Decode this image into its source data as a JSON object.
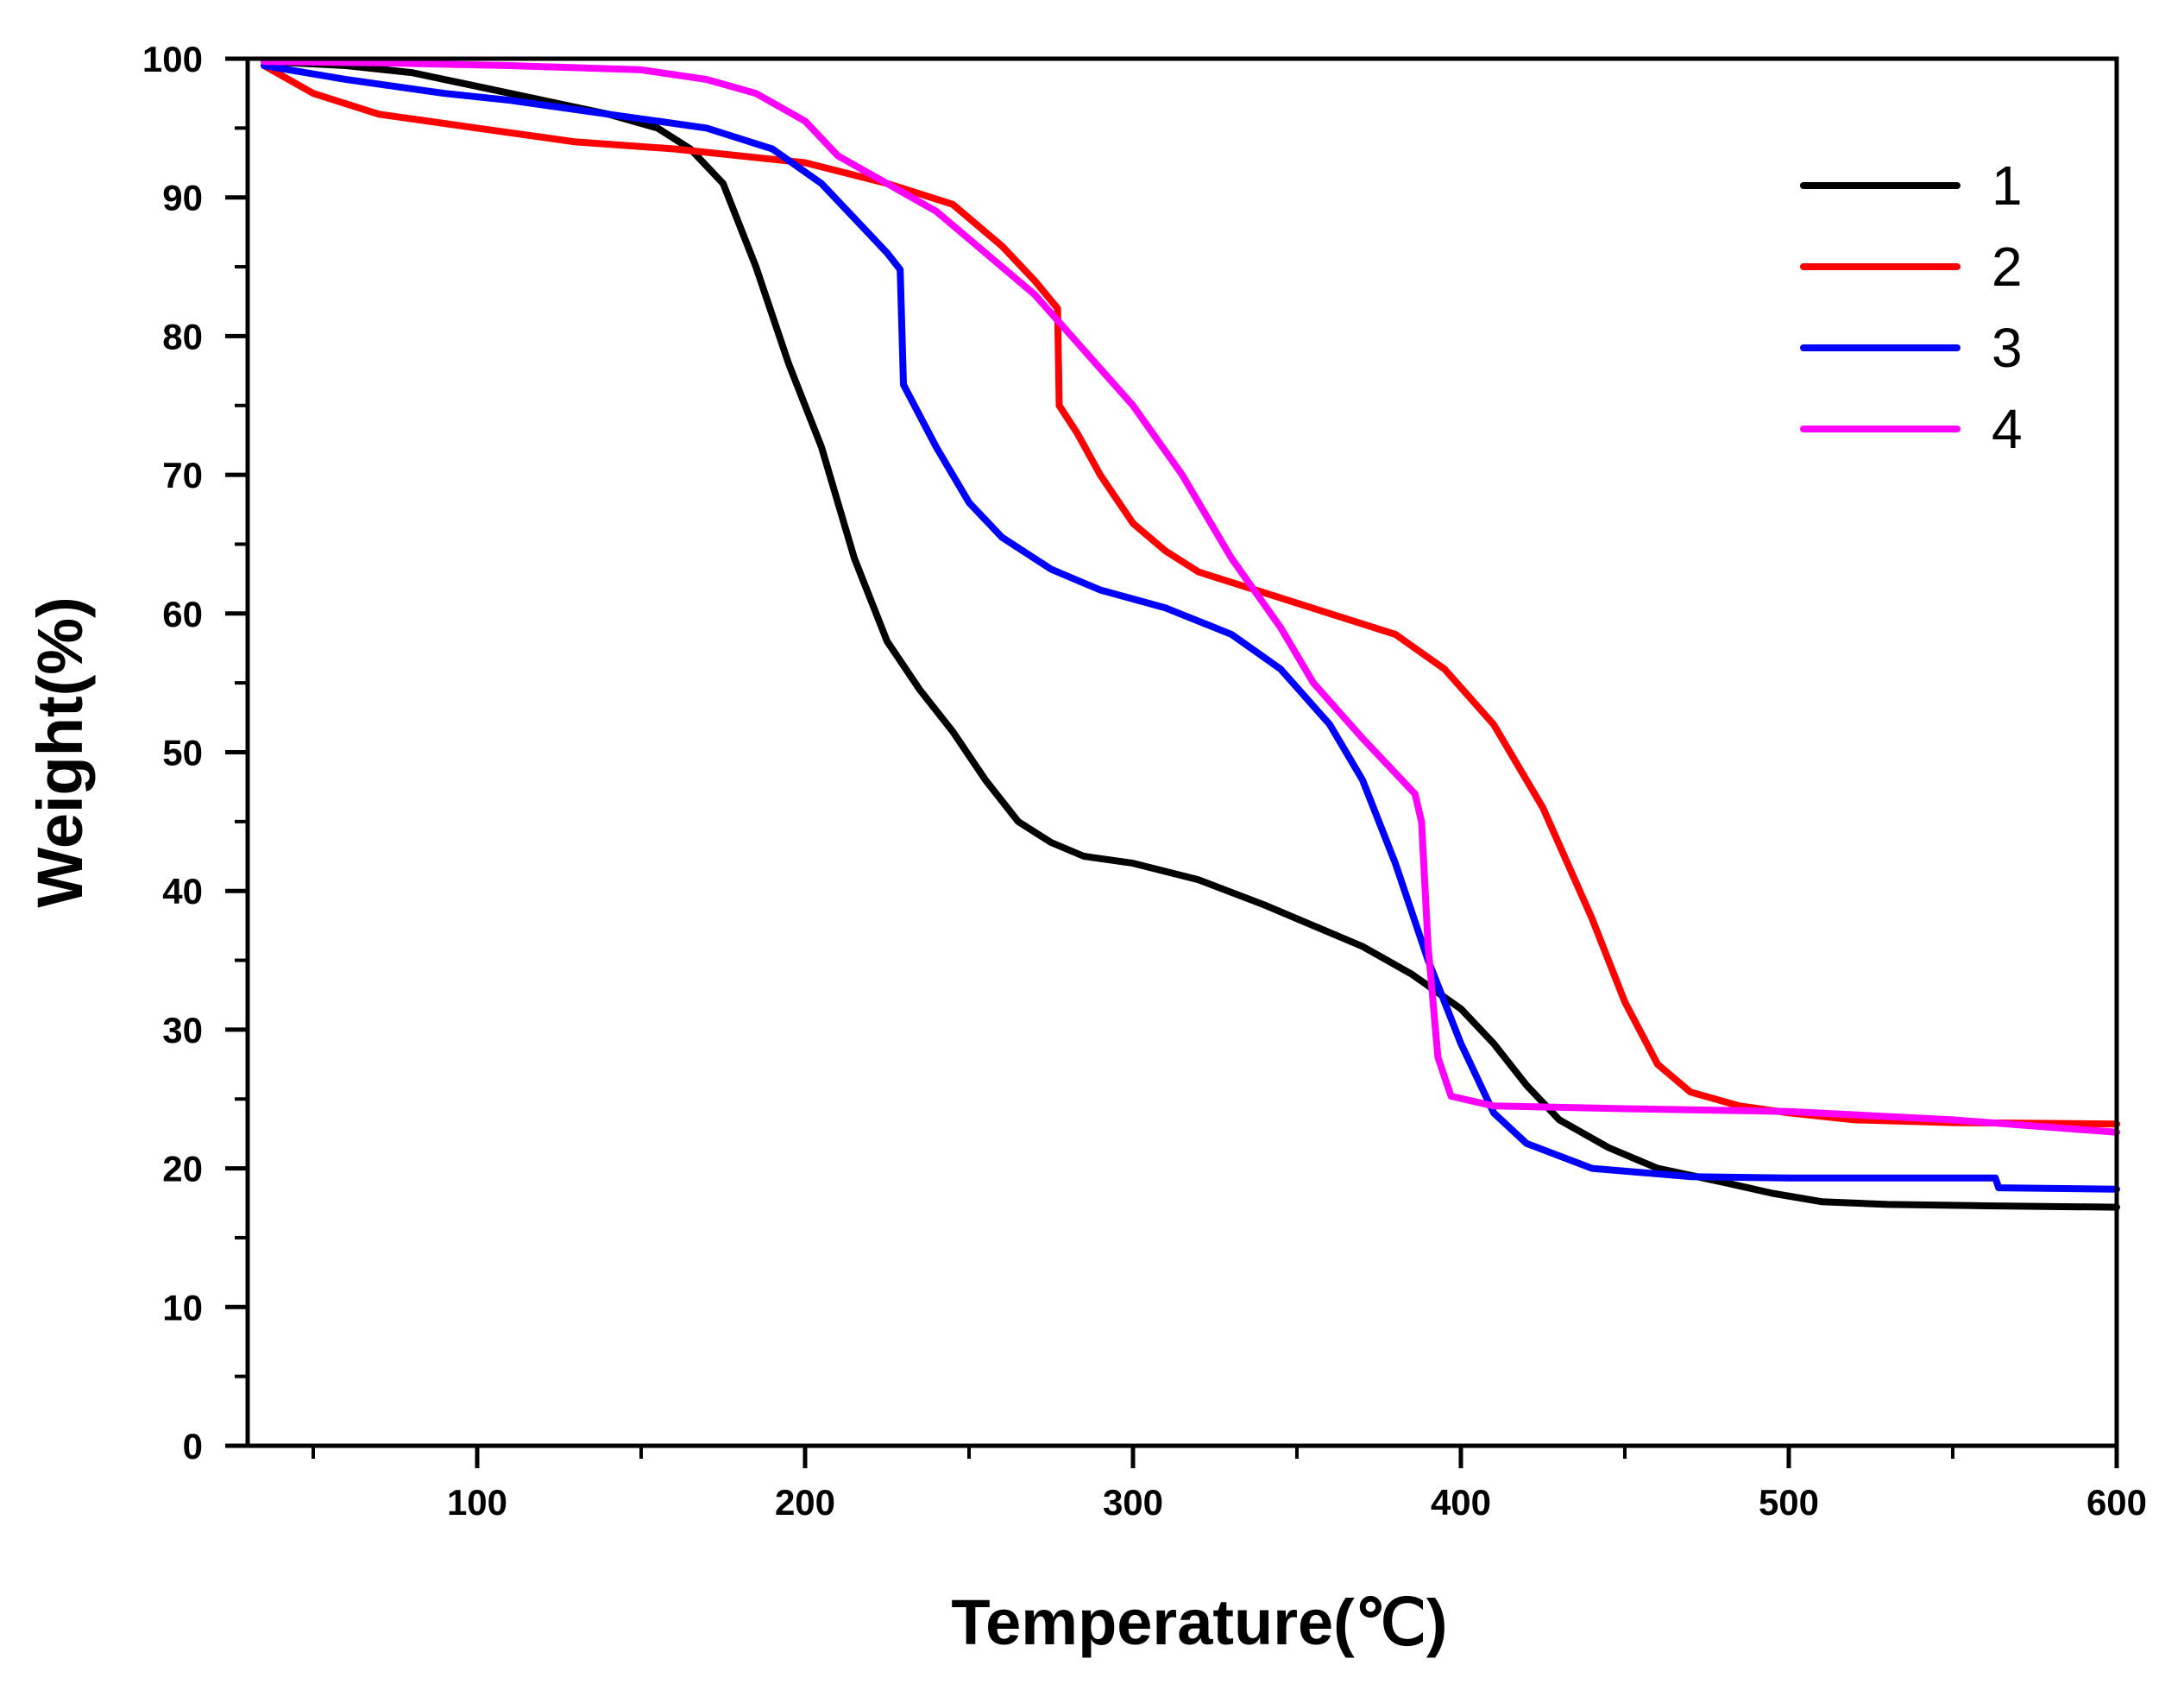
{
  "chart_data": {
    "type": "line",
    "title": "",
    "xlabel": "Temperature(℃)",
    "ylabel": "Weight(%)",
    "xlim": [
      30,
      600
    ],
    "ylim": [
      0,
      100
    ],
    "x_ticks": [
      100,
      200,
      300,
      400,
      500,
      600
    ],
    "y_ticks": [
      0,
      10,
      20,
      30,
      40,
      50,
      60,
      70,
      80,
      90,
      100
    ],
    "grid": false,
    "legend_position": "top-right",
    "series": [
      {
        "name": "1",
        "color": "#000000",
        "points": [
          [
            35,
            99.8
          ],
          [
            60,
            99.5
          ],
          [
            80,
            99
          ],
          [
            100,
            98
          ],
          [
            120,
            97
          ],
          [
            140,
            96
          ],
          [
            155,
            95
          ],
          [
            165,
            93.5
          ],
          [
            175,
            91
          ],
          [
            185,
            85
          ],
          [
            195,
            78
          ],
          [
            205,
            72
          ],
          [
            215,
            64
          ],
          [
            225,
            58
          ],
          [
            235,
            54.5
          ],
          [
            245,
            51.5
          ],
          [
            255,
            48
          ],
          [
            265,
            45
          ],
          [
            275,
            43.5
          ],
          [
            285,
            42.5
          ],
          [
            300,
            42
          ],
          [
            320,
            40.8
          ],
          [
            340,
            39
          ],
          [
            355,
            37.5
          ],
          [
            370,
            36
          ],
          [
            385,
            34
          ],
          [
            400,
            31.5
          ],
          [
            410,
            29
          ],
          [
            420,
            26
          ],
          [
            430,
            23.5
          ],
          [
            445,
            21.5
          ],
          [
            460,
            20
          ],
          [
            480,
            19
          ],
          [
            495,
            18.2
          ],
          [
            510,
            17.6
          ],
          [
            530,
            17.4
          ],
          [
            560,
            17.3
          ],
          [
            600,
            17.2
          ]
        ]
      },
      {
        "name": "2",
        "color": "#ff0000",
        "points": [
          [
            35,
            99.5
          ],
          [
            50,
            97.5
          ],
          [
            70,
            96
          ],
          [
            100,
            95
          ],
          [
            130,
            94
          ],
          [
            160,
            93.5
          ],
          [
            200,
            92.5
          ],
          [
            225,
            91
          ],
          [
            245,
            89.5
          ],
          [
            260,
            86.5
          ],
          [
            270,
            84
          ],
          [
            277,
            82
          ],
          [
            277.5,
            75
          ],
          [
            283,
            73
          ],
          [
            290,
            70
          ],
          [
            300,
            66.5
          ],
          [
            310,
            64.5
          ],
          [
            320,
            63
          ],
          [
            340,
            61.5
          ],
          [
            360,
            60
          ],
          [
            380,
            58.5
          ],
          [
            395,
            56
          ],
          [
            410,
            52
          ],
          [
            425,
            46
          ],
          [
            440,
            38
          ],
          [
            450,
            32
          ],
          [
            460,
            27.5
          ],
          [
            470,
            25.5
          ],
          [
            485,
            24.5
          ],
          [
            500,
            24
          ],
          [
            520,
            23.5
          ],
          [
            550,
            23.3
          ],
          [
            600,
            23.2
          ]
        ]
      },
      {
        "name": "3",
        "color": "#0000ff",
        "points": [
          [
            35,
            99.5
          ],
          [
            60,
            98.5
          ],
          [
            90,
            97.5
          ],
          [
            110,
            97
          ],
          [
            140,
            96
          ],
          [
            170,
            95
          ],
          [
            190,
            93.5
          ],
          [
            205,
            91
          ],
          [
            215,
            88.5
          ],
          [
            225,
            86
          ],
          [
            229,
            84.8
          ],
          [
            230,
            76.5
          ],
          [
            240,
            72
          ],
          [
            250,
            68
          ],
          [
            260,
            65.5
          ],
          [
            275,
            63.2
          ],
          [
            290,
            61.7
          ],
          [
            310,
            60.4
          ],
          [
            330,
            58.5
          ],
          [
            345,
            56
          ],
          [
            360,
            52
          ],
          [
            370,
            48
          ],
          [
            380,
            42
          ],
          [
            390,
            35
          ],
          [
            400,
            29
          ],
          [
            410,
            24
          ],
          [
            420,
            21.8
          ],
          [
            440,
            20
          ],
          [
            470,
            19.4
          ],
          [
            500,
            19.3
          ],
          [
            540,
            19.3
          ],
          [
            563,
            19.3
          ],
          [
            564,
            18.6
          ],
          [
            600,
            18.5
          ]
        ]
      },
      {
        "name": "4",
        "color": "#ff00ff",
        "points": [
          [
            35,
            99.8
          ],
          [
            70,
            99.7
          ],
          [
            110,
            99.5
          ],
          [
            150,
            99.2
          ],
          [
            170,
            98.5
          ],
          [
            185,
            97.5
          ],
          [
            200,
            95.5
          ],
          [
            210,
            93
          ],
          [
            225,
            91
          ],
          [
            240,
            89
          ],
          [
            255,
            86
          ],
          [
            270,
            83
          ],
          [
            285,
            79
          ],
          [
            300,
            75
          ],
          [
            315,
            70
          ],
          [
            330,
            64
          ],
          [
            345,
            59
          ],
          [
            355,
            55
          ],
          [
            370,
            51
          ],
          [
            380,
            48.5
          ],
          [
            386,
            47
          ],
          [
            388,
            45
          ],
          [
            390,
            36
          ],
          [
            393,
            28
          ],
          [
            397,
            25.2
          ],
          [
            410,
            24.5
          ],
          [
            450,
            24.3
          ],
          [
            500,
            24.1
          ],
          [
            550,
            23.5
          ],
          [
            600,
            22.6
          ]
        ]
      }
    ]
  }
}
